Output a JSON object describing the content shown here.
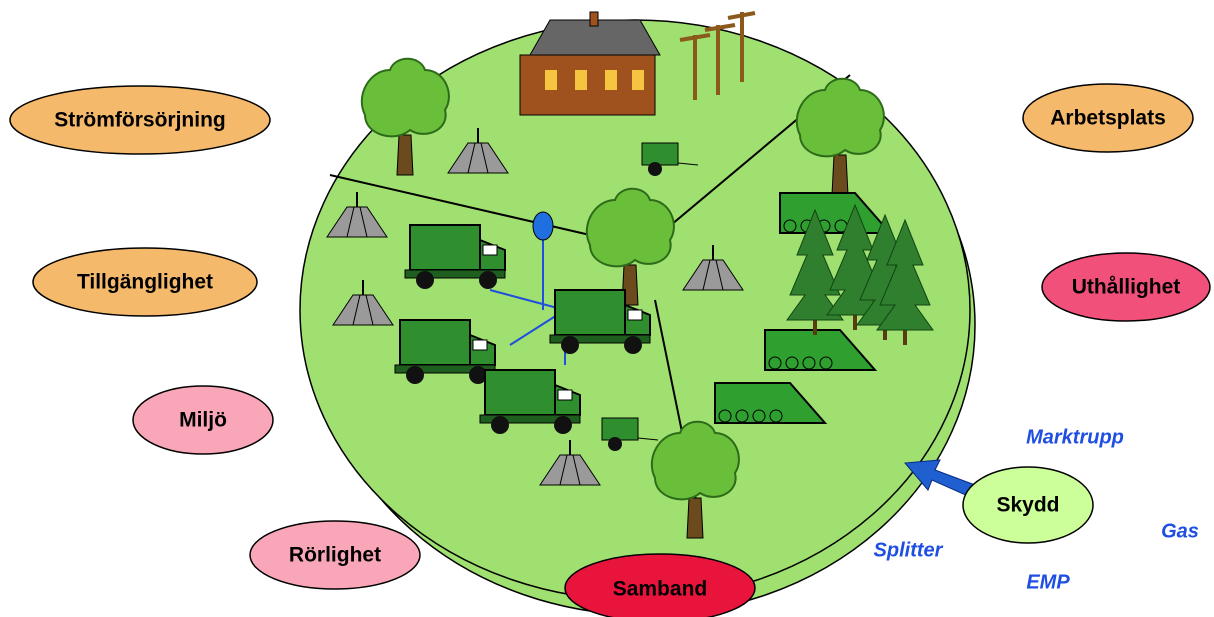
{
  "factors": [
    {
      "label": "Strömförsörjning"
    },
    {
      "label": "Tillgänglighet"
    },
    {
      "label": "Miljö"
    },
    {
      "label": "Rörlighet"
    },
    {
      "label": "Samband"
    },
    {
      "label": "Arbetsplats"
    },
    {
      "label": "Uthållighet"
    }
  ],
  "protection": {
    "label": "Skydd",
    "threats": [
      "Marktrupp",
      "Gas",
      "Splitter",
      "EMP"
    ]
  }
}
